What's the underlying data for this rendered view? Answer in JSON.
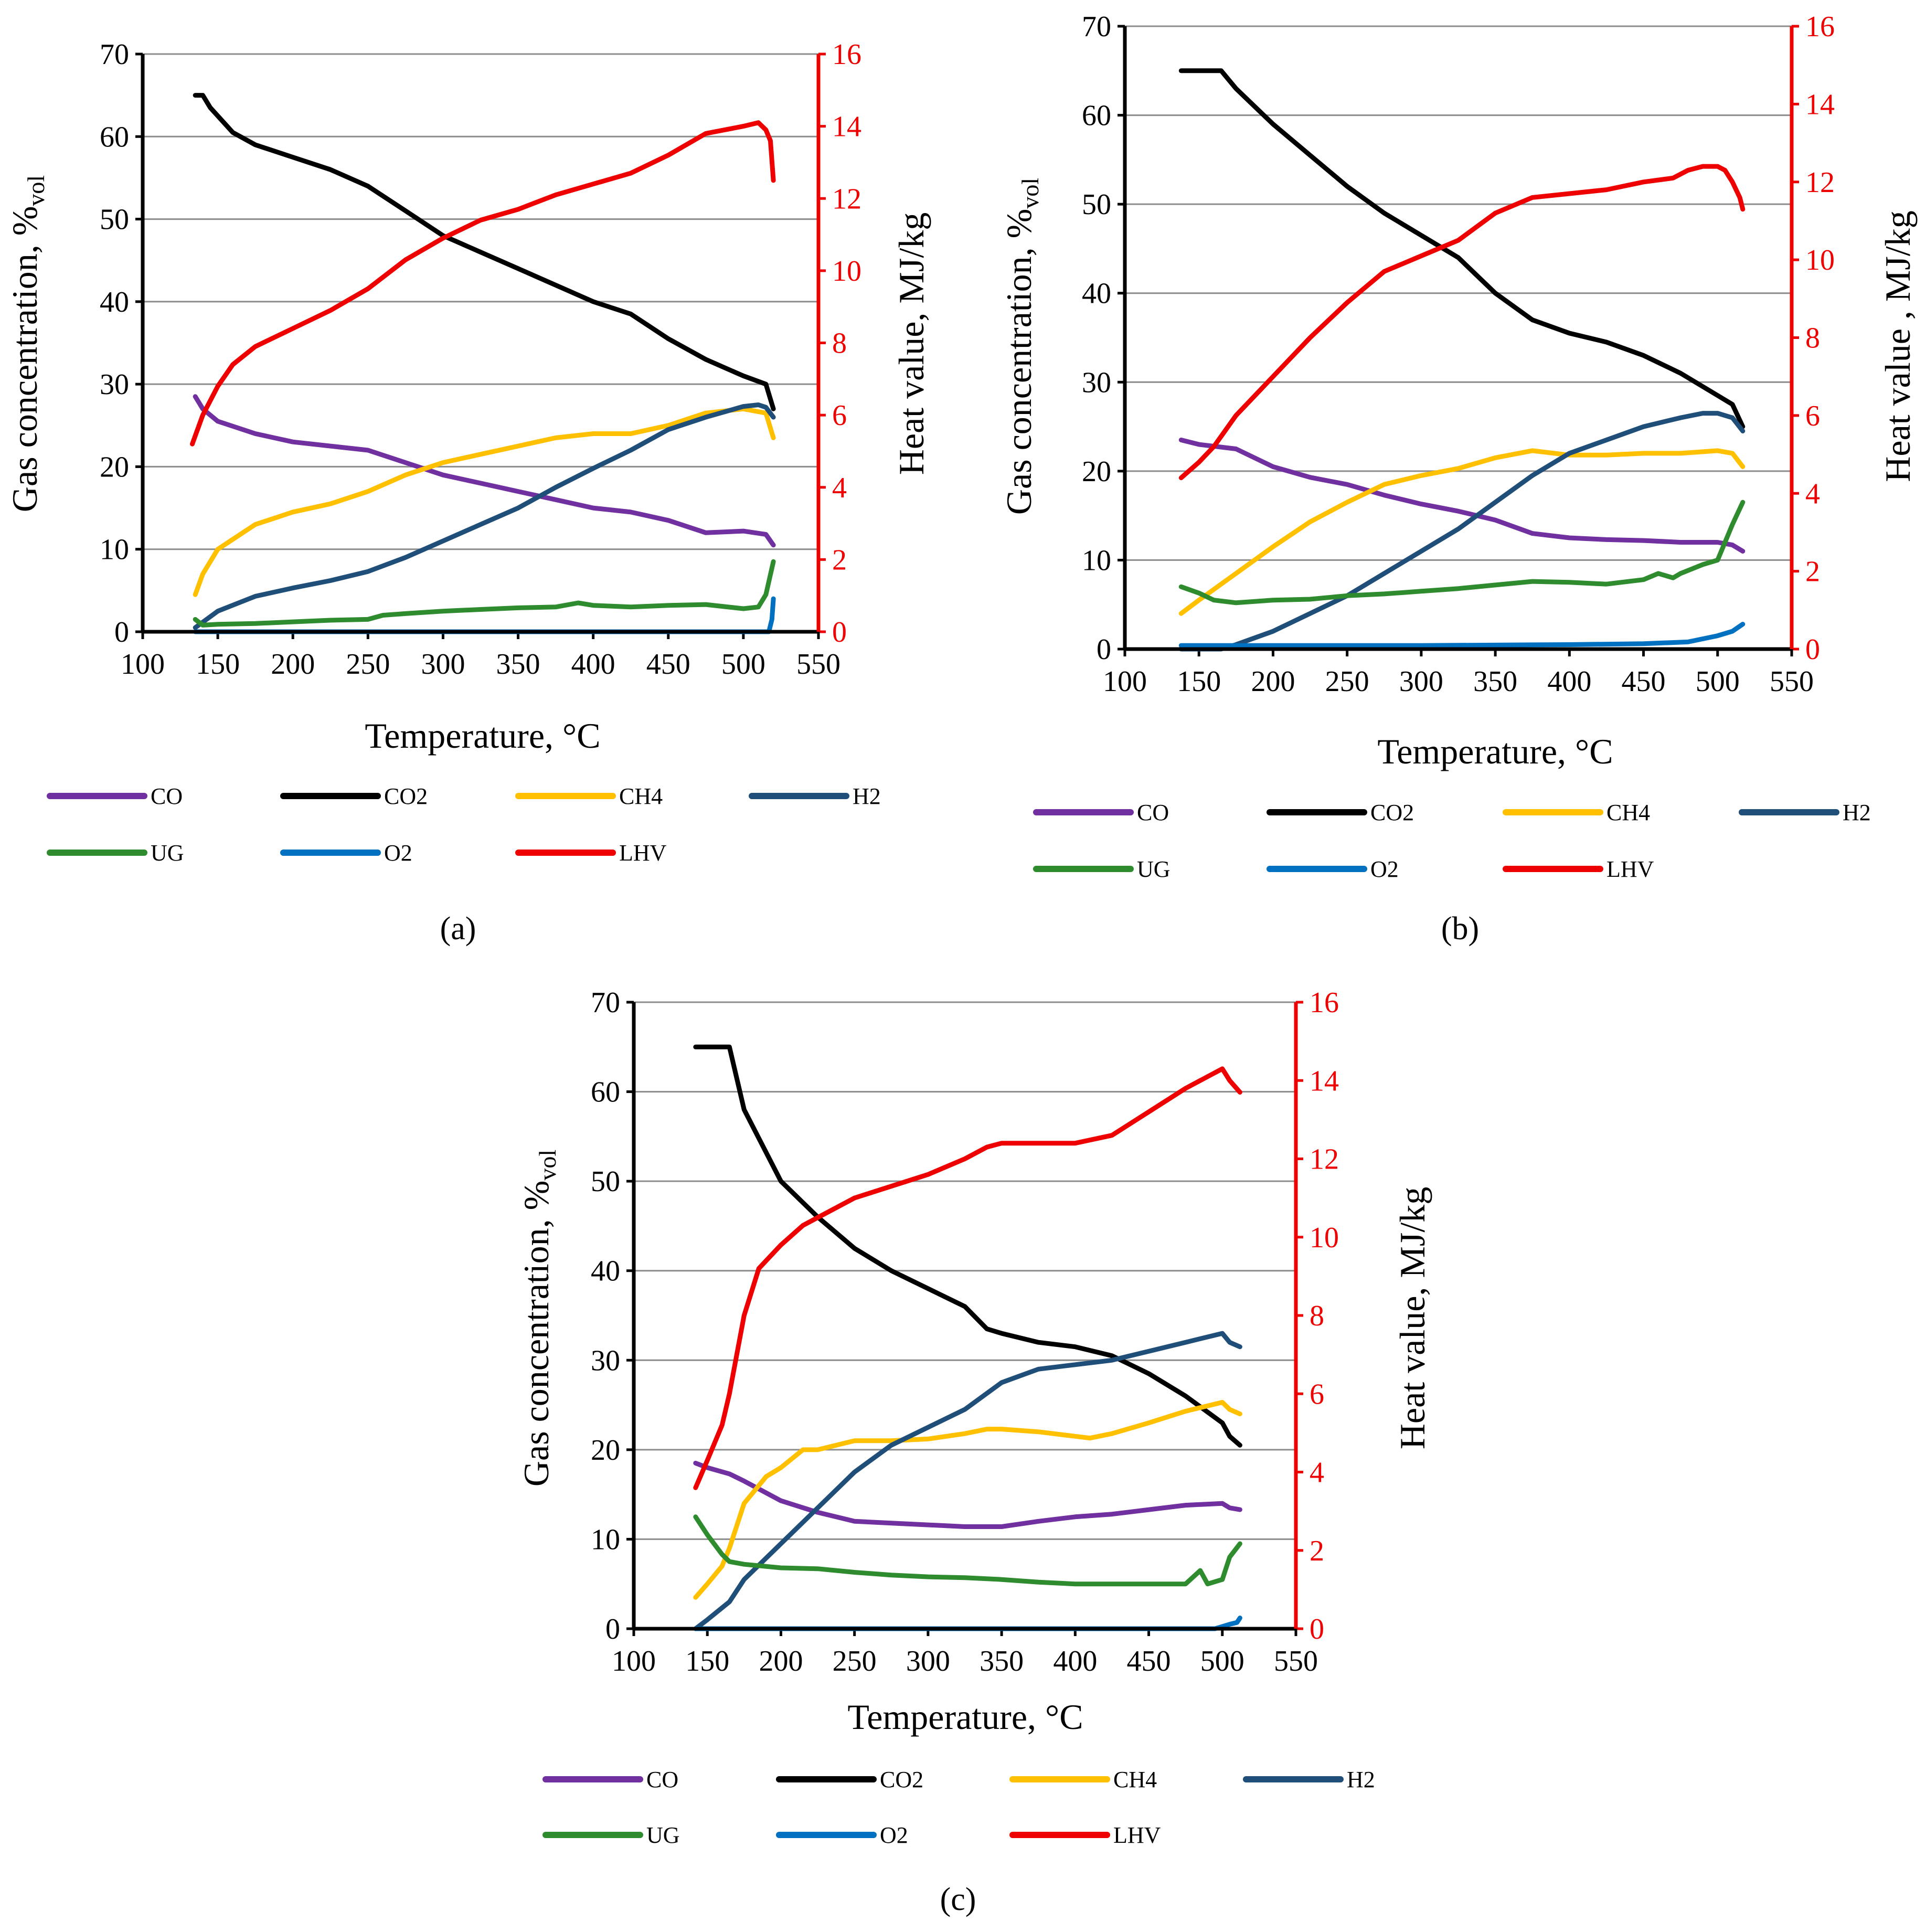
{
  "figure": {
    "panel_labels": [
      "(a)",
      "(b)",
      "(c)"
    ]
  },
  "colors": {
    "CO": "#7030a0",
    "CO2": "#000000",
    "CH4": "#ffc000",
    "H2": "#1f4e79",
    "UG": "#2e8b2e",
    "O2": "#0070c0",
    "LHV": "#ee0000"
  },
  "chart_data": [
    {
      "panel": "a",
      "type": "line",
      "xlabel": "Temperature, °C",
      "ylabel": "Gas concentration, %",
      "ylabel_sub": "vol",
      "y2label": "Heat value, MJ/kg",
      "xlim": [
        100,
        550
      ],
      "ylim": [
        0,
        70
      ],
      "y2lim": [
        0,
        16
      ],
      "xticks": [
        100,
        150,
        200,
        250,
        300,
        350,
        400,
        450,
        500,
        550
      ],
      "yticks": [
        0,
        10,
        20,
        30,
        40,
        50,
        60,
        70
      ],
      "y2ticks": [
        0,
        2,
        4,
        6,
        8,
        10,
        12,
        14,
        16
      ],
      "legend": [
        "CO",
        "CO2",
        "CH4",
        "H2",
        "UG",
        "O2",
        "LHV"
      ],
      "series": [
        {
          "name": "CO",
          "axis": "left",
          "x": [
            135,
            140,
            150,
            175,
            200,
            225,
            250,
            275,
            300,
            325,
            350,
            375,
            400,
            425,
            450,
            475,
            500,
            515,
            520
          ],
          "y": [
            28.5,
            27,
            25.5,
            24,
            23,
            22.5,
            22,
            20.5,
            19,
            18,
            17,
            16,
            15,
            14.5,
            13.5,
            12,
            12.2,
            11.8,
            10.5
          ]
        },
        {
          "name": "CO2",
          "axis": "left",
          "x": [
            135,
            140,
            145,
            160,
            175,
            200,
            225,
            250,
            275,
            300,
            325,
            350,
            375,
            400,
            425,
            450,
            475,
            500,
            515,
            520
          ],
          "y": [
            65,
            65,
            63.5,
            60.5,
            59,
            57.5,
            56,
            54,
            51,
            48,
            46,
            44,
            42,
            40,
            38.5,
            35.5,
            33,
            31,
            30,
            27
          ]
        },
        {
          "name": "CH4",
          "axis": "left",
          "x": [
            135,
            140,
            150,
            175,
            200,
            225,
            250,
            275,
            300,
            325,
            350,
            375,
            400,
            425,
            450,
            475,
            500,
            515,
            520
          ],
          "y": [
            4.5,
            7,
            10,
            13,
            14.5,
            15.5,
            17,
            19,
            20.5,
            21.5,
            22.5,
            23.5,
            24,
            24,
            25,
            26.5,
            27,
            26.5,
            23.5
          ]
        },
        {
          "name": "H2",
          "axis": "left",
          "x": [
            135,
            150,
            175,
            200,
            225,
            250,
            275,
            300,
            325,
            350,
            375,
            400,
            425,
            450,
            475,
            500,
            510,
            515,
            520
          ],
          "y": [
            0.5,
            2.5,
            4.3,
            5.3,
            6.2,
            7.3,
            9,
            11,
            13,
            15,
            17.5,
            19.8,
            22,
            24.5,
            26,
            27.3,
            27.5,
            27.2,
            26
          ]
        },
        {
          "name": "UG",
          "axis": "left",
          "x": [
            135,
            140,
            150,
            175,
            200,
            225,
            250,
            260,
            275,
            300,
            325,
            350,
            375,
            390,
            400,
            425,
            450,
            475,
            500,
            510,
            515,
            520
          ],
          "y": [
            1.5,
            0.8,
            0.9,
            1,
            1.2,
            1.4,
            1.5,
            2,
            2.2,
            2.5,
            2.7,
            2.9,
            3,
            3.5,
            3.2,
            3,
            3.2,
            3.3,
            2.8,
            3,
            4.5,
            8.5
          ]
        },
        {
          "name": "O2",
          "axis": "left",
          "x": [
            135,
            200,
            300,
            400,
            500,
            517,
            519,
            520
          ],
          "y": [
            0,
            0,
            0,
            0,
            0,
            0,
            1.5,
            4
          ]
        },
        {
          "name": "LHV",
          "axis": "right",
          "x": [
            133,
            140,
            150,
            160,
            175,
            200,
            225,
            250,
            275,
            300,
            325,
            350,
            375,
            400,
            425,
            450,
            475,
            500,
            510,
            515,
            518,
            520
          ],
          "y": [
            5.2,
            6.0,
            6.8,
            7.4,
            7.9,
            8.4,
            8.9,
            9.5,
            10.3,
            10.9,
            11.4,
            11.7,
            12.1,
            12.4,
            12.7,
            13.2,
            13.8,
            14.0,
            14.1,
            13.9,
            13.6,
            12.5
          ]
        }
      ]
    },
    {
      "panel": "b",
      "type": "line",
      "xlabel": "Temperature, °C",
      "ylabel": "Gas concentration, %",
      "ylabel_sub": "vol",
      "y2label": "Heat value , MJ/kg",
      "xlim": [
        100,
        550
      ],
      "ylim": [
        0,
        70
      ],
      "y2lim": [
        0,
        16
      ],
      "xticks": [
        100,
        150,
        200,
        250,
        300,
        350,
        400,
        450,
        500,
        550
      ],
      "yticks": [
        0,
        10,
        20,
        30,
        40,
        50,
        60,
        70
      ],
      "y2ticks": [
        0,
        2,
        4,
        6,
        8,
        10,
        12,
        14,
        16
      ],
      "legend": [
        "CO",
        "CO2",
        "CH4",
        "H2",
        "UG",
        "O2",
        "LHV"
      ],
      "series": [
        {
          "name": "CO",
          "axis": "left",
          "x": [
            138,
            150,
            175,
            200,
            225,
            250,
            275,
            300,
            325,
            350,
            375,
            400,
            425,
            450,
            475,
            500,
            510,
            517
          ],
          "y": [
            23.5,
            23,
            22.5,
            20.5,
            19.3,
            18.5,
            17.3,
            16.3,
            15.5,
            14.5,
            13,
            12.5,
            12.3,
            12.2,
            12,
            12,
            11.7,
            11
          ]
        },
        {
          "name": "CO2",
          "axis": "left",
          "x": [
            138,
            165,
            175,
            200,
            225,
            250,
            275,
            300,
            325,
            350,
            375,
            400,
            425,
            450,
            475,
            500,
            510,
            517
          ],
          "y": [
            65,
            65,
            63,
            59,
            55.5,
            52,
            49,
            46.5,
            44,
            40,
            37,
            35.5,
            34.5,
            33,
            31,
            28.5,
            27.5,
            25
          ]
        },
        {
          "name": "CH4",
          "axis": "left",
          "x": [
            138,
            150,
            175,
            200,
            225,
            250,
            275,
            300,
            325,
            350,
            375,
            400,
            425,
            450,
            475,
            500,
            510,
            517
          ],
          "y": [
            4,
            5.5,
            8.5,
            11.5,
            14.3,
            16.5,
            18.5,
            19.5,
            20.3,
            21.5,
            22.3,
            21.8,
            21.8,
            22,
            22,
            22.3,
            22,
            20.5
          ]
        },
        {
          "name": "H2",
          "axis": "left",
          "x": [
            138,
            165,
            175,
            200,
            225,
            250,
            275,
            300,
            325,
            350,
            375,
            400,
            425,
            450,
            475,
            490,
            500,
            510,
            517
          ],
          "y": [
            0,
            0,
            0.5,
            2,
            4,
            6,
            8.5,
            11,
            13.5,
            16.5,
            19.5,
            22,
            23.5,
            25,
            26,
            26.5,
            26.5,
            26,
            24.5
          ]
        },
        {
          "name": "UG",
          "axis": "left",
          "x": [
            138,
            150,
            160,
            175,
            200,
            225,
            250,
            275,
            300,
            325,
            350,
            375,
            400,
            425,
            450,
            460,
            470,
            475,
            490,
            500,
            505,
            510,
            517
          ],
          "y": [
            7,
            6.3,
            5.5,
            5.2,
            5.5,
            5.6,
            6,
            6.2,
            6.5,
            6.8,
            7.2,
            7.6,
            7.5,
            7.3,
            7.8,
            8.5,
            8,
            8.5,
            9.5,
            10,
            12,
            14,
            16.5
          ]
        },
        {
          "name": "O2",
          "axis": "left",
          "x": [
            138,
            200,
            300,
            400,
            450,
            480,
            500,
            510,
            517
          ],
          "y": [
            0.4,
            0.4,
            0.4,
            0.5,
            0.6,
            0.8,
            1.5,
            2,
            2.8
          ]
        },
        {
          "name": "LHV",
          "axis": "right",
          "x": [
            138,
            150,
            160,
            175,
            200,
            225,
            250,
            275,
            300,
            325,
            350,
            375,
            400,
            425,
            450,
            470,
            480,
            490,
            500,
            505,
            510,
            515,
            517
          ],
          "y": [
            4.4,
            4.8,
            5.2,
            6.0,
            7.0,
            8.0,
            8.9,
            9.7,
            10.1,
            10.5,
            11.2,
            11.6,
            11.7,
            11.8,
            12.0,
            12.1,
            12.3,
            12.4,
            12.4,
            12.3,
            12.0,
            11.6,
            11.3
          ]
        }
      ]
    },
    {
      "panel": "c",
      "type": "line",
      "xlabel": "Temperature, °C",
      "ylabel": "Gas concentration, %",
      "ylabel_sub": "vol",
      "y2label": "Heat value, MJ/kg",
      "xlim": [
        100,
        550
      ],
      "ylim": [
        0,
        70
      ],
      "y2lim": [
        0,
        16
      ],
      "xticks": [
        100,
        150,
        200,
        250,
        300,
        350,
        400,
        450,
        500,
        550
      ],
      "yticks": [
        0,
        10,
        20,
        30,
        40,
        50,
        60,
        70
      ],
      "y2ticks": [
        0,
        2,
        4,
        6,
        8,
        10,
        12,
        14,
        16
      ],
      "legend": [
        "CO",
        "CO2",
        "CH4",
        "H2",
        "UG",
        "O2",
        "LHV"
      ],
      "series": [
        {
          "name": "CO",
          "axis": "left",
          "x": [
            142,
            150,
            165,
            175,
            200,
            225,
            250,
            275,
            300,
            325,
            350,
            375,
            400,
            425,
            450,
            475,
            500,
            505,
            512
          ],
          "y": [
            18.5,
            18,
            17.3,
            16.5,
            14.3,
            13,
            12,
            11.8,
            11.6,
            11.4,
            11.4,
            12,
            12.5,
            12.8,
            13.3,
            13.8,
            14,
            13.5,
            13.3
          ]
        },
        {
          "name": "CO2",
          "axis": "left",
          "x": [
            142,
            165,
            175,
            200,
            225,
            250,
            275,
            300,
            325,
            340,
            350,
            375,
            400,
            425,
            450,
            475,
            500,
            505,
            512
          ],
          "y": [
            65,
            65,
            58,
            50,
            46,
            42.5,
            40,
            38,
            36,
            33.5,
            33,
            32,
            31.5,
            30.5,
            28.5,
            26,
            23,
            21.5,
            20.5
          ]
        },
        {
          "name": "CH4",
          "axis": "left",
          "x": [
            142,
            150,
            160,
            165,
            175,
            190,
            200,
            215,
            225,
            250,
            275,
            300,
            325,
            340,
            350,
            375,
            400,
            410,
            425,
            450,
            475,
            500,
            505,
            512
          ],
          "y": [
            3.5,
            5,
            7,
            9,
            14,
            17,
            18,
            20,
            20,
            21,
            21,
            21.2,
            21.8,
            22.3,
            22.3,
            22,
            21.5,
            21.3,
            21.8,
            23,
            24.3,
            25.3,
            24.5,
            24
          ]
        },
        {
          "name": "H2",
          "axis": "left",
          "x": [
            142,
            150,
            165,
            175,
            200,
            225,
            250,
            275,
            300,
            325,
            350,
            375,
            400,
            425,
            450,
            475,
            500,
            505,
            512
          ],
          "y": [
            0,
            1,
            3,
            5.5,
            9.5,
            13.5,
            17.5,
            20.5,
            22.5,
            24.5,
            27.5,
            29,
            29.5,
            30,
            31,
            32,
            33,
            32,
            31.5
          ]
        },
        {
          "name": "UG",
          "axis": "left",
          "x": [
            142,
            150,
            160,
            165,
            175,
            200,
            225,
            250,
            275,
            300,
            325,
            350,
            375,
            400,
            425,
            450,
            475,
            485,
            490,
            500,
            505,
            512
          ],
          "y": [
            12.5,
            10.5,
            8.3,
            7.5,
            7.2,
            6.8,
            6.7,
            6.3,
            6,
            5.8,
            5.7,
            5.5,
            5.2,
            5,
            5,
            5,
            5,
            6.5,
            5,
            5.5,
            8,
            9.5
          ]
        },
        {
          "name": "O2",
          "axis": "left",
          "x": [
            142,
            200,
            300,
            400,
            495,
            505,
            510,
            512
          ],
          "y": [
            0,
            0,
            0,
            0,
            0,
            0.5,
            0.7,
            1.2
          ]
        },
        {
          "name": "LHV",
          "axis": "right",
          "x": [
            142,
            150,
            160,
            165,
            170,
            175,
            185,
            200,
            215,
            225,
            250,
            275,
            300,
            325,
            340,
            350,
            375,
            400,
            425,
            450,
            475,
            490,
            500,
            505,
            512
          ],
          "y": [
            3.6,
            4.3,
            5.2,
            6.0,
            7.0,
            8.0,
            9.2,
            9.8,
            10.3,
            10.5,
            11.0,
            11.3,
            11.6,
            12.0,
            12.3,
            12.4,
            12.4,
            12.4,
            12.6,
            13.2,
            13.8,
            14.1,
            14.3,
            14.0,
            13.7
          ]
        }
      ]
    }
  ]
}
